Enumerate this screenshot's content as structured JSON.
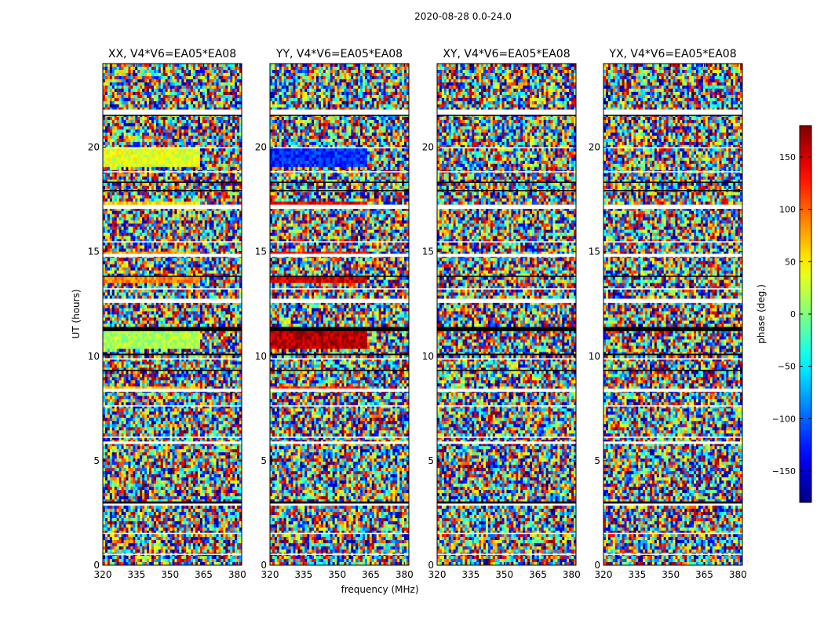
{
  "figure": {
    "suptitle": "2020-08-28 0.0-24.0"
  },
  "chart_data": {
    "type": "heatmap",
    "title": "2020-08-28 0.0-24.0",
    "xlabel": "frequency (MHz)",
    "ylabel": "UT (hours)",
    "xlim": [
      320,
      382
    ],
    "ylim": [
      0,
      24
    ],
    "xticks": [
      "320",
      "335",
      "350",
      "365",
      "380"
    ],
    "yticks": [
      "0",
      "5",
      "10",
      "15",
      "20"
    ],
    "panels": [
      {
        "title": "XX, V4*V6=EA05*EA08",
        "pol": "XX"
      },
      {
        "title": "YY, V4*V6=EA05*EA08",
        "pol": "YY"
      },
      {
        "title": "XY, V4*V6=EA05*EA08",
        "pol": "XY"
      },
      {
        "title": "YX, V4*V6=EA05*EA08",
        "pol": "YX"
      }
    ],
    "colorbar": {
      "label": "phase (deg.)",
      "range": [
        -180,
        180
      ],
      "ticks": [
        "150",
        "100",
        "50",
        "0",
        "−50",
        "−100",
        "−150"
      ],
      "tick_values": [
        150,
        100,
        50,
        0,
        -50,
        -100,
        -150
      ],
      "colormap": "jet"
    },
    "flagged_hours": [
      [
        21.55,
        21.8
      ],
      [
        17.05,
        17.25
      ],
      [
        14.75,
        14.9
      ],
      [
        12.55,
        12.75
      ],
      [
        8.3,
        8.45
      ],
      [
        5.8,
        5.92
      ],
      [
        2.85,
        3.0
      ],
      [
        7.6,
        7.65
      ],
      [
        6.1,
        6.15
      ],
      [
        1.5,
        1.55
      ],
      [
        0.5,
        0.55
      ],
      [
        18.8,
        18.85
      ],
      [
        19.95,
        20.0
      ],
      [
        9.85,
        9.9
      ],
      [
        13.2,
        13.25
      ],
      [
        15.45,
        15.5
      ]
    ],
    "black_hours": [
      [
        11.2,
        11.4
      ],
      [
        10.05,
        10.12
      ],
      [
        2.95,
        3.05
      ],
      [
        17.9,
        17.95
      ],
      [
        18.3,
        18.35
      ],
      [
        21.5,
        21.55
      ],
      [
        13.8,
        13.85
      ],
      [
        9.3,
        9.35
      ]
    ],
    "coherent_bands": [
      {
        "y0": 19.0,
        "y1": 19.95,
        "xx": 35,
        "yy": -120
      },
      {
        "y0": 17.1,
        "y1": 17.35,
        "xx": 60,
        "yy": 140
      },
      {
        "y0": 10.3,
        "y1": 11.2,
        "xx": 15,
        "yy": 160
      },
      {
        "y0": 13.5,
        "y1": 13.75,
        "xx": 90,
        "yy": 150
      },
      {
        "y0": 8.35,
        "y1": 8.5,
        "xx": 70,
        "yy": 120
      },
      {
        "y0": 14.85,
        "y1": 15.05,
        "xx": 80,
        "yy": 130
      }
    ],
    "coherent_freq_max": 363
  }
}
